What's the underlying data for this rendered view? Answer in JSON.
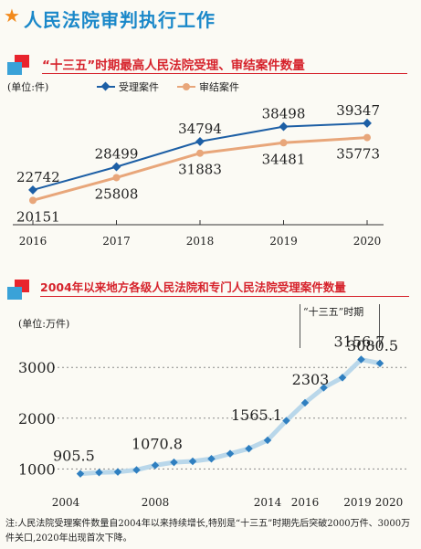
{
  "header": {
    "title": "人民法院审判执行工作",
    "icon": "star-icon"
  },
  "section1": {
    "title": "“十三五”时期最高人民法院受理、审结案件数量"
  },
  "section2": {
    "title": "2004年以来地方各级人民法院和专门人民法院受理案件数量"
  },
  "period_label": "“十三五”时期",
  "note": "注:人民法院受理案件数量自2004年以来持续增长,特别是“十三五”时期先后突破2000万件、3000万件关口,2020年出现首次下降。",
  "colors": {
    "accepted": "#1d5fa5",
    "concluded": "#e8a67a",
    "local_line": "#b9d7ea",
    "local_marker": "#2f7fc0",
    "title_red": "#d6222b",
    "header_blue": "#1a88c9"
  },
  "chart_data": [
    {
      "type": "line",
      "title": "“十三五”时期最高人民法院受理、审结案件数量",
      "unit_label": "(单位:件)",
      "x": [
        "2016",
        "2017",
        "2018",
        "2019",
        "2020"
      ],
      "series": [
        {
          "name": "受理案件",
          "values": [
            22742,
            28499,
            34794,
            38498,
            39347
          ],
          "labels": [
            "22742",
            "28499",
            "34794",
            "38498",
            "39347"
          ]
        },
        {
          "name": "审结案件",
          "values": [
            20151,
            25808,
            31883,
            34481,
            35773
          ],
          "labels": [
            "20151",
            "25808",
            "31883",
            "34481",
            "35773"
          ]
        }
      ],
      "ylim": [
        15000,
        45000
      ],
      "legend": "top",
      "grid": false
    },
    {
      "type": "line",
      "title": "2004年以来地方各级人民法院和专门人民法院受理案件数量",
      "unit_label": "(单位:万件)",
      "x": [
        2004,
        2005,
        2006,
        2007,
        2008,
        2009,
        2010,
        2011,
        2012,
        2013,
        2014,
        2015,
        2016,
        2017,
        2018,
        2019,
        2020
      ],
      "xticks": [
        "2004",
        "2008",
        "2014",
        "2016",
        "2019",
        "2020"
      ],
      "xtick_years": [
        2004,
        2008,
        2014,
        2016,
        2019,
        2020
      ],
      "yticks": [
        "1000",
        "2000",
        "3000"
      ],
      "ytick_values": [
        1000,
        2000,
        3000
      ],
      "series": [
        {
          "values": [
            905.5,
            930,
            940,
            980,
            1070.8,
            1130,
            1150,
            1200,
            1300,
            1400,
            1565.1,
            1950,
            2303,
            2600,
            2800,
            3156.7,
            3080.5
          ]
        }
      ],
      "point_labels": [
        {
          "year": 2004,
          "text": "905.5"
        },
        {
          "year": 2008,
          "text": "1070.8"
        },
        {
          "year": 2014,
          "text": "1565.1"
        },
        {
          "year": 2016,
          "text": "2303"
        },
        {
          "year": 2019,
          "text": "3156.7"
        },
        {
          "year": 2020,
          "text": "3080.5"
        }
      ],
      "ylim": [
        700,
        3400
      ],
      "grid": true
    }
  ]
}
